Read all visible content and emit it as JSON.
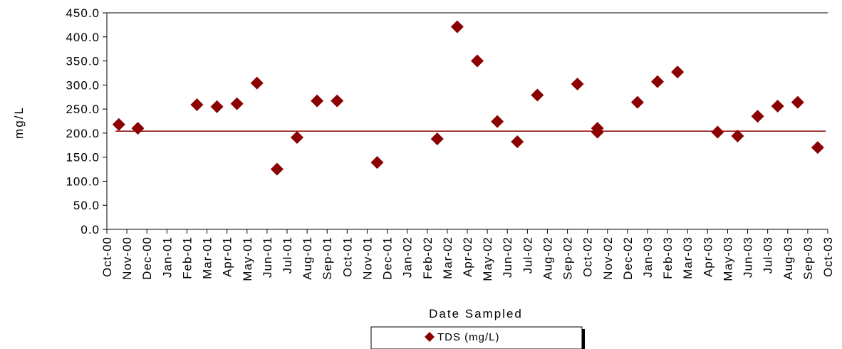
{
  "chart_data": {
    "type": "scatter",
    "xlabel": "Date Sampled",
    "ylabel": "mg/L",
    "ylim": [
      0,
      450
    ],
    "yticks": [
      "0.0",
      "50.0",
      "100.0",
      "150.0",
      "200.0",
      "250.0",
      "300.0",
      "350.0",
      "400.0",
      "450.0"
    ],
    "categories": [
      "Oct-00",
      "Nov-00",
      "Dec-00",
      "Jan-01",
      "Feb-01",
      "Mar-01",
      "Apr-01",
      "May-01",
      "Jun-01",
      "Jul-01",
      "Aug-01",
      "Sep-01",
      "Oct-01",
      "Nov-01",
      "Dec-01",
      "Jan-02",
      "Feb-02",
      "Mar-02",
      "Apr-02",
      "May-02",
      "Jun-02",
      "Jul-02",
      "Aug-02",
      "Sep-02",
      "Oct-02",
      "Nov-02",
      "Dec-02",
      "Jan-03",
      "Feb-03",
      "Mar-03",
      "Apr-03",
      "May-03",
      "Jun-03",
      "Jul-03",
      "Aug-03",
      "Sep-03",
      "Oct-03"
    ],
    "series": [
      {
        "name": "TDS (mg/L)",
        "color": "#8b0000",
        "marker": "diamond",
        "points": [
          {
            "x": 0.1,
            "y": 218
          },
          {
            "x": 1.05,
            "y": 210
          },
          {
            "x": 4.0,
            "y": 259
          },
          {
            "x": 5.0,
            "y": 255
          },
          {
            "x": 6.0,
            "y": 261
          },
          {
            "x": 7.0,
            "y": 304
          },
          {
            "x": 8.0,
            "y": 125
          },
          {
            "x": 9.0,
            "y": 191
          },
          {
            "x": 10.0,
            "y": 267
          },
          {
            "x": 11.0,
            "y": 267
          },
          {
            "x": 13.0,
            "y": 139
          },
          {
            "x": 16.0,
            "y": 188
          },
          {
            "x": 17.0,
            "y": 421
          },
          {
            "x": 18.0,
            "y": 350
          },
          {
            "x": 19.0,
            "y": 224
          },
          {
            "x": 20.0,
            "y": 182
          },
          {
            "x": 21.0,
            "y": 279
          },
          {
            "x": 23.0,
            "y": 302
          },
          {
            "x": 24.0,
            "y": 210
          },
          {
            "x": 24.0,
            "y": 202
          },
          {
            "x": 26.0,
            "y": 264
          },
          {
            "x": 27.0,
            "y": 307
          },
          {
            "x": 28.0,
            "y": 327
          },
          {
            "x": 30.0,
            "y": 202
          },
          {
            "x": 31.0,
            "y": 194
          },
          {
            "x": 32.0,
            "y": 235
          },
          {
            "x": 33.0,
            "y": 256
          },
          {
            "x": 34.0,
            "y": 264
          },
          {
            "x": 35.0,
            "y": 170
          }
        ]
      }
    ],
    "reference_line": {
      "y": 204,
      "x_start": 0,
      "x_end": 35.9,
      "color": "#8b0000"
    },
    "grid": false,
    "legend_position": "bottom-center",
    "legend": {
      "label": "TDS (mg/L)"
    }
  }
}
